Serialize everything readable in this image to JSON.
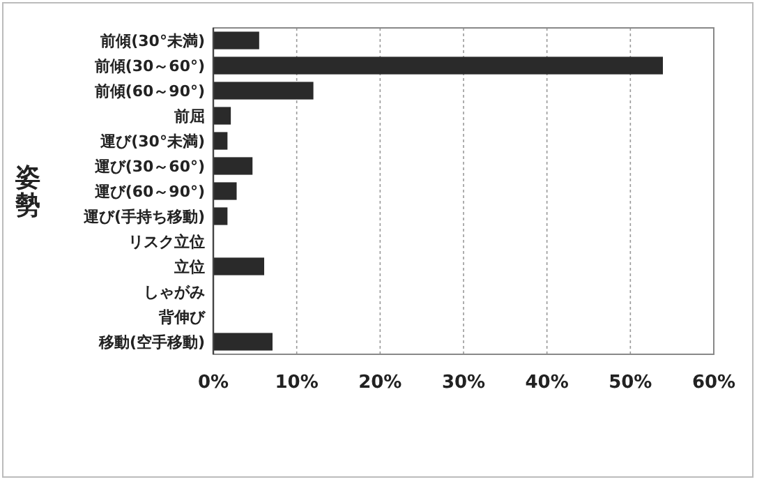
{
  "chart_data": {
    "type": "bar",
    "orientation": "horizontal",
    "ylabel": "姿勢",
    "categories": [
      "前傾(30°未満)",
      "前傾(30～60°)",
      "前傾(60～90°)",
      "前屈",
      "運び(30°未満)",
      "運び(30～60°)",
      "運び(60～90°)",
      "運び(手持ち移動)",
      "リスク立位",
      "立位",
      "しゃがみ",
      "背伸び",
      "移動(空手移動)"
    ],
    "values": [
      5.5,
      53.9,
      12.0,
      2.1,
      1.7,
      4.7,
      2.8,
      1.7,
      0,
      6.1,
      0,
      0,
      7.1
    ],
    "color": "#2a2a2a",
    "xlim": [
      0,
      60
    ],
    "xticks": [
      {
        "value": 0,
        "label": "0%"
      },
      {
        "value": 10,
        "label": "10%"
      },
      {
        "value": 20,
        "label": "20%"
      },
      {
        "value": 30,
        "label": "30%"
      },
      {
        "value": 40,
        "label": "40%"
      },
      {
        "value": 50,
        "label": "50%"
      },
      {
        "value": 60,
        "label": "60%"
      }
    ],
    "grid": "x"
  }
}
